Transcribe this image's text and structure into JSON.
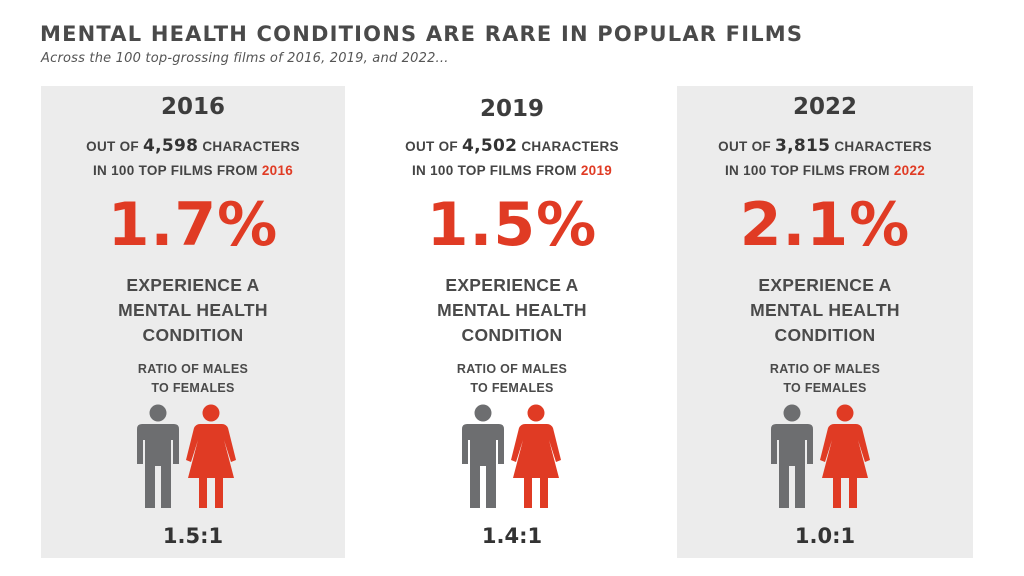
{
  "header": {
    "title": "MENTAL HEALTH CONDITIONS ARE RARE IN POPULAR FILMS",
    "subtitle": "Across the 100 top-grossing films of 2016, 2019, and 2022..."
  },
  "colors": {
    "accent": "#e03b24",
    "male": "#6d6e70",
    "panel": "#ececec",
    "text": "#3d3d3d"
  },
  "panels": [
    {
      "year": "2016",
      "out_of_prefix": "OUT OF",
      "characters": "4,598",
      "characters_suffix": "CHARACTERS",
      "films_prefix": "IN 100 TOP FILMS FROM",
      "films_year": "2016",
      "percent": "1.7%",
      "experience_line1": "EXPERIENCE A",
      "experience_line2": "MENTAL HEALTH",
      "experience_line3": "CONDITION",
      "ratio_label_line1": "RATIO OF MALES",
      "ratio_label_line2": "TO FEMALES",
      "ratio": "1.5:1",
      "male_icon": "male-figure-icon",
      "female_icon": "female-figure-icon"
    },
    {
      "year": "2019",
      "out_of_prefix": "OUT OF",
      "characters": "4,502",
      "characters_suffix": "CHARACTERS",
      "films_prefix": "IN 100 TOP FILMS FROM",
      "films_year": "2019",
      "percent": "1.5%",
      "experience_line1": "EXPERIENCE A",
      "experience_line2": "MENTAL HEALTH",
      "experience_line3": "CONDITION",
      "ratio_label_line1": "RATIO OF MALES",
      "ratio_label_line2": "TO FEMALES",
      "ratio": "1.4:1",
      "male_icon": "male-figure-icon",
      "female_icon": "female-figure-icon"
    },
    {
      "year": "2022",
      "out_of_prefix": "OUT OF",
      "characters": "3,815",
      "characters_suffix": "CHARACTERS",
      "films_prefix": "IN 100 TOP FILMS FROM",
      "films_year": "2022",
      "percent": "2.1%",
      "experience_line1": "EXPERIENCE A",
      "experience_line2": "MENTAL HEALTH",
      "experience_line3": "CONDITION",
      "ratio_label_line1": "RATIO OF MALES",
      "ratio_label_line2": "TO FEMALES",
      "ratio": "1.0:1",
      "male_icon": "male-figure-icon",
      "female_icon": "female-figure-icon"
    }
  ]
}
